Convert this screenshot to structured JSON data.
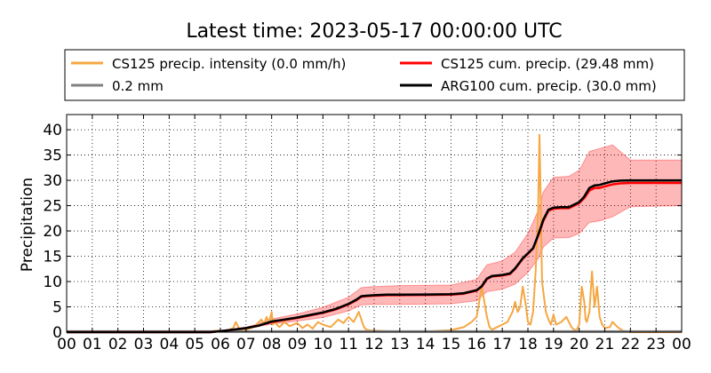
{
  "chart_data": {
    "type": "line",
    "title": "Latest time: 2023-05-17 00:00:00 UTC",
    "xlabel": "",
    "ylabel": "Precipitation",
    "xlim": [
      0,
      24
    ],
    "ylim": [
      0,
      43
    ],
    "x_tick_labels": [
      "00",
      "01",
      "02",
      "03",
      "04",
      "05",
      "06",
      "07",
      "08",
      "09",
      "10",
      "11",
      "12",
      "13",
      "14",
      "15",
      "16",
      "17",
      "18",
      "19",
      "20",
      "21",
      "22",
      "23",
      "00"
    ],
    "y_tick_labels": [
      "0",
      "5",
      "10",
      "15",
      "20",
      "25",
      "30",
      "35",
      "40"
    ],
    "y_ticks": [
      0,
      5,
      10,
      15,
      20,
      25,
      30,
      35,
      40
    ],
    "grid": true,
    "legend_placement": "top, above plot",
    "series": [
      {
        "name": "CS125 precip. intensity (0.0 mm/h)",
        "color": "#f5a742",
        "x": [
          0,
          5.5,
          5.9,
          6.2,
          6.5,
          6.6,
          6.7,
          6.8,
          7.0,
          7.3,
          7.6,
          7.7,
          7.8,
          7.9,
          8.0,
          8.05,
          8.1,
          8.2,
          8.3,
          8.5,
          8.7,
          9.0,
          9.2,
          9.4,
          9.6,
          9.8,
          10.0,
          10.3,
          10.6,
          10.8,
          11.0,
          11.2,
          11.4,
          11.5,
          11.6,
          11.7,
          11.9,
          12.5,
          13.0,
          14.0,
          15.0,
          15.5,
          15.8,
          16.0,
          16.1,
          16.2,
          16.3,
          16.4,
          16.5,
          16.6,
          16.8,
          17.0,
          17.2,
          17.4,
          17.5,
          17.6,
          17.7,
          17.8,
          17.9,
          18.0,
          18.1,
          18.2,
          18.3,
          18.4,
          18.45,
          18.5,
          18.55,
          18.6,
          18.7,
          18.8,
          18.9,
          19.0,
          19.1,
          19.3,
          19.5,
          19.7,
          19.8,
          19.9,
          20.0,
          20.1,
          20.2,
          20.25,
          20.3,
          20.4,
          20.5,
          20.6,
          20.7,
          20.8,
          20.9,
          21.0,
          21.2,
          21.3,
          21.5,
          21.7,
          22.0,
          24.0
        ],
        "values": [
          0,
          0,
          0.3,
          0.2,
          0.8,
          2.0,
          1.0,
          0.3,
          0.5,
          1.0,
          2.5,
          1.5,
          3.0,
          2.0,
          4.0,
          1.5,
          2.5,
          1.5,
          1.0,
          2.0,
          1.2,
          1.8,
          0.8,
          1.5,
          0.7,
          2.0,
          1.5,
          1.0,
          2.5,
          1.8,
          3.0,
          2.0,
          4.0,
          2.5,
          1.0,
          0.5,
          0.3,
          0.2,
          0.1,
          0.1,
          0.4,
          1.0,
          2.0,
          3.0,
          6.0,
          9.0,
          6.0,
          3.0,
          1.0,
          0.5,
          1.0,
          1.5,
          2.0,
          4.0,
          6.0,
          4.0,
          5.0,
          9.0,
          6.0,
          2.0,
          1.5,
          4.0,
          12.0,
          24.0,
          39.0,
          26.0,
          10.0,
          8.0,
          4.0,
          2.5,
          1.5,
          3.5,
          1.5,
          2.0,
          3.0,
          1.0,
          0.5,
          0.4,
          1.5,
          9.0,
          6.0,
          2.5,
          2.0,
          4.0,
          12.0,
          5.0,
          9.0,
          3.0,
          1.5,
          0.8,
          1.0,
          2.0,
          1.0,
          0.3,
          0,
          0
        ]
      },
      {
        "name": "0.2 mm",
        "color": "#808080",
        "x": [
          0,
          24
        ],
        "values": [
          0.2,
          0.2
        ]
      },
      {
        "name": "CS125 cum. precip. (29.48 mm)",
        "color": "#ff0000",
        "x": [
          0,
          5.6,
          6.0,
          6.5,
          7.0,
          7.5,
          8.0,
          8.5,
          9.0,
          9.5,
          10.0,
          10.5,
          11.0,
          11.3,
          11.5,
          11.7,
          12.0,
          12.5,
          13.0,
          14.0,
          15.0,
          15.5,
          16.0,
          16.2,
          16.4,
          16.6,
          17.0,
          17.3,
          17.5,
          17.8,
          18.0,
          18.2,
          18.4,
          18.5,
          18.6,
          18.8,
          19.0,
          19.3,
          19.6,
          19.8,
          20.0,
          20.2,
          20.4,
          20.6,
          20.8,
          21.0,
          21.3,
          21.6,
          22.0,
          23.0,
          24.0
        ],
        "values": [
          0,
          0,
          0.2,
          0.5,
          0.8,
          1.3,
          2.0,
          2.4,
          2.8,
          3.3,
          3.8,
          4.5,
          5.5,
          6.3,
          7.0,
          7.1,
          7.2,
          7.3,
          7.3,
          7.35,
          7.4,
          7.6,
          8.2,
          9.0,
          10.5,
          11.0,
          11.2,
          11.5,
          12.5,
          14.5,
          15.5,
          16.5,
          19.0,
          20.5,
          22.0,
          24.0,
          24.4,
          24.5,
          24.5,
          25.0,
          25.5,
          26.5,
          28.0,
          28.5,
          28.5,
          28.8,
          29.2,
          29.4,
          29.48,
          29.48,
          29.48
        ]
      },
      {
        "name": "ARG100 cum. precip. (30.0 mm)",
        "color": "#000000",
        "x": [
          0,
          5.6,
          6.0,
          6.5,
          7.0,
          7.5,
          8.0,
          8.5,
          9.0,
          9.5,
          10.0,
          10.5,
          11.0,
          11.3,
          11.5,
          11.7,
          12.0,
          12.5,
          13.0,
          14.0,
          15.0,
          15.5,
          16.0,
          16.2,
          16.4,
          16.6,
          17.0,
          17.3,
          17.5,
          17.8,
          18.0,
          18.2,
          18.4,
          18.5,
          18.6,
          18.8,
          19.0,
          19.3,
          19.6,
          19.8,
          20.0,
          20.2,
          20.4,
          20.6,
          20.8,
          21.0,
          21.3,
          21.6,
          22.0,
          23.0,
          24.0
        ],
        "values": [
          0,
          0,
          0.2,
          0.5,
          0.8,
          1.3,
          2.1,
          2.5,
          2.9,
          3.4,
          3.9,
          4.6,
          5.6,
          6.4,
          7.1,
          7.2,
          7.3,
          7.4,
          7.4,
          7.45,
          7.5,
          7.7,
          8.3,
          9.1,
          10.6,
          11.1,
          11.3,
          11.6,
          12.6,
          14.6,
          15.6,
          16.6,
          19.2,
          20.7,
          22.2,
          24.2,
          24.6,
          24.7,
          24.7,
          25.2,
          25.7,
          26.8,
          28.5,
          29.0,
          29.1,
          29.4,
          29.8,
          29.95,
          30.0,
          30.0,
          30.0
        ]
      }
    ],
    "uncertainty_band": {
      "color": "#ff0000",
      "x": [
        0,
        5.6,
        6.0,
        7.0,
        8.0,
        9.0,
        10.0,
        11.0,
        11.5,
        12.0,
        13.0,
        15.0,
        16.0,
        16.4,
        17.0,
        17.5,
        18.0,
        18.4,
        18.6,
        19.0,
        19.6,
        20.0,
        20.4,
        20.8,
        21.3,
        22.0,
        24.0
      ],
      "lower": [
        0,
        0,
        0.2,
        0.7,
        1.6,
        2.2,
        2.9,
        4.2,
        5.4,
        5.5,
        5.5,
        5.6,
        6.2,
        8.0,
        8.5,
        9.5,
        11.8,
        14.5,
        16.8,
        18.6,
        18.7,
        19.5,
        21.7,
        22.0,
        22.8,
        24.8,
        25.0
      ],
      "upper": [
        0,
        0,
        0.3,
        0.9,
        2.6,
        3.6,
        4.9,
        6.9,
        8.8,
        9.0,
        9.2,
        9.3,
        10.4,
        13.3,
        14.1,
        15.8,
        19.5,
        24.0,
        27.7,
        30.6,
        30.8,
        32.0,
        35.7,
        36.3,
        37.0,
        34.0,
        34.0
      ]
    }
  }
}
